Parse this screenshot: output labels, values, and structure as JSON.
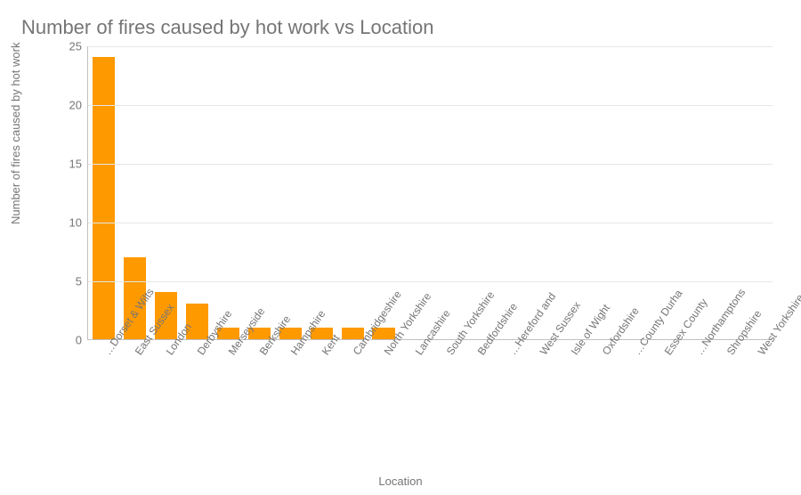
{
  "chart": {
    "type": "bar",
    "title": "Number of fires caused by hot work vs Location",
    "title_color": "#757575",
    "title_fontsize": 22,
    "xlabel": "Location",
    "ylabel": "Number of fires caused by hot work",
    "label_color": "#757575",
    "label_fontsize": 13,
    "tick_color": "#757575",
    "tick_fontsize": 13,
    "ylim": [
      0,
      25
    ],
    "ytick_step": 5,
    "yticks": [
      0,
      5,
      10,
      15,
      20,
      25
    ],
    "grid_color": "#e6e6e6",
    "axis_color": "#c0c0c0",
    "background_color": "#ffffff",
    "bar_color": "#ff9900",
    "bar_width": 0.72,
    "categories": [
      "Dorset & Wilts…",
      "East Sussex",
      "London",
      "Derbyshire",
      "Merseyside",
      "Berkshire",
      "Hampshire",
      "Kent",
      "Cambridgeshire",
      "North Yorkshire",
      "Lancashire",
      "South Yorkshire",
      "Bedfordshire",
      "Hereford and…",
      "West Sussex",
      "Isle of Wight",
      "Oxfordshire",
      "County Durha…",
      "Essex County",
      "Northamptons…",
      "Shropshire",
      "West Yorkshire"
    ],
    "values": [
      24,
      7,
      4,
      3,
      1,
      1,
      1,
      1,
      1,
      1,
      0,
      0,
      0,
      0,
      0,
      0,
      0,
      0,
      0,
      0,
      0,
      0
    ]
  }
}
